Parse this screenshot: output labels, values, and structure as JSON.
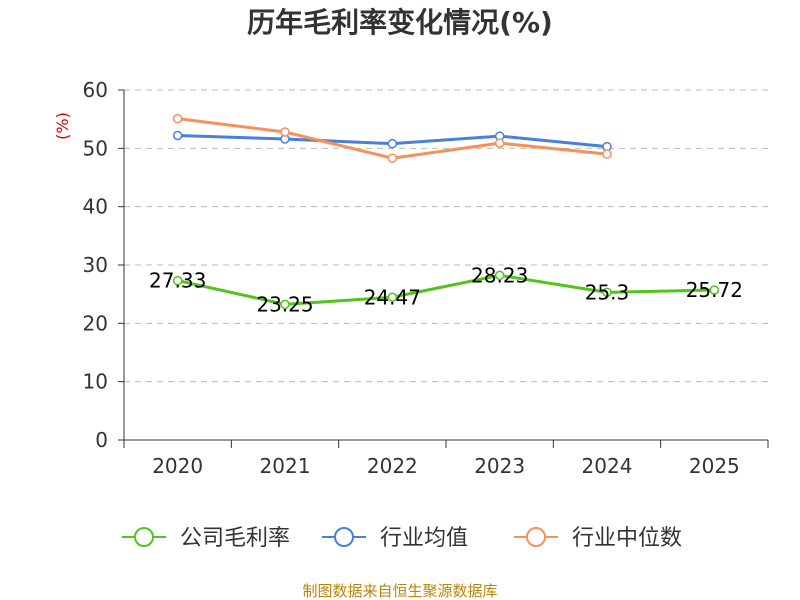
{
  "chart_data": {
    "type": "line",
    "title": "历年毛利率变化情况(%)",
    "xlabel": "",
    "ylabel": "(%)",
    "categories": [
      "2020",
      "2021",
      "2022",
      "2023",
      "2024",
      "2025"
    ],
    "ylim": [
      0,
      60
    ],
    "yticks": [
      0,
      10,
      20,
      30,
      40,
      50,
      60
    ],
    "grid": true,
    "legend_position": "bottom",
    "series": [
      {
        "name": "公司毛利率",
        "color": "#52c41a",
        "values": [
          27.33,
          23.25,
          24.47,
          28.23,
          25.3,
          25.72
        ],
        "labels": [
          "27.33",
          "23.25",
          "24.47",
          "28.23",
          "25.3",
          "25.72"
        ]
      },
      {
        "name": "行业均值",
        "color": "#4a7fdc",
        "values": [
          52.2,
          51.6,
          50.8,
          52.1,
          50.3,
          null
        ]
      },
      {
        "name": "行业中位数",
        "color": "#f5915a",
        "values": [
          55.1,
          52.8,
          48.3,
          50.9,
          49.0,
          null
        ]
      }
    ],
    "source": "制图数据来自恒生聚源数据库"
  }
}
